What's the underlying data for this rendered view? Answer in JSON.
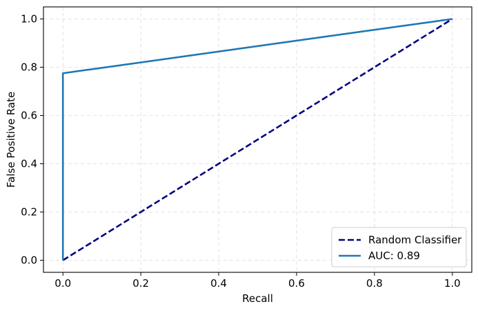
{
  "chart_data": {
    "type": "line",
    "title": "",
    "xlabel": "Recall",
    "ylabel": "False Positive Rate",
    "xlim": [
      -0.05,
      1.05
    ],
    "ylim": [
      -0.05,
      1.05
    ],
    "xticks": [
      0.0,
      0.2,
      0.4,
      0.6,
      0.8,
      1.0
    ],
    "xtick_labels": [
      "0.0",
      "0.2",
      "0.4",
      "0.6",
      "0.8",
      "1.0"
    ],
    "yticks": [
      0.0,
      0.2,
      0.4,
      0.6,
      0.8,
      1.0
    ],
    "ytick_labels": [
      "0.0",
      "0.2",
      "0.4",
      "0.6",
      "0.8",
      "1.0"
    ],
    "grid": true,
    "legend_position": "lower-right",
    "series": [
      {
        "name": "Random Classifier",
        "color": "#000080",
        "line_style": "dashed",
        "x": [
          0.0,
          1.0
        ],
        "y": [
          0.0,
          1.0
        ]
      },
      {
        "name": "AUC: 0.89",
        "color": "#1f77b4",
        "line_style": "solid",
        "x": [
          0.0,
          0.0,
          1.0
        ],
        "y": [
          0.0,
          0.775,
          1.0
        ]
      }
    ]
  }
}
